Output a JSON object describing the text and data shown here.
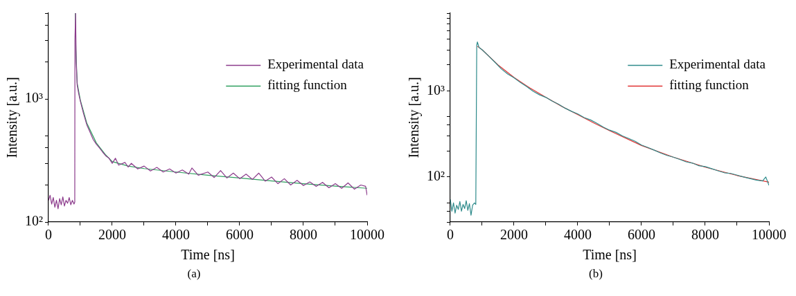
{
  "chart_data": [
    {
      "type": "line",
      "xlabel": "Time [ns]",
      "ylabel": "Intensity [a.u.]",
      "log": "y",
      "legend": "top right",
      "grid": false,
      "marker": "none",
      "annotations": [
        "(a)"
      ],
      "xlim": [
        0,
        10000
      ],
      "xticks": [
        0,
        {
          "value": 1000,
          "label": null
        },
        2000,
        {
          "value": 3000,
          "label": null
        },
        4000,
        {
          "value": 5000,
          "label": null
        },
        6000,
        {
          "value": 7000,
          "label": null
        },
        8000,
        {
          "value": 9000,
          "label": null
        },
        10000
      ],
      "ylim": [
        100,
        5000
      ],
      "yticks": [
        {
          "value": 100,
          "label": "10²"
        },
        {
          "value": 200,
          "label": null
        },
        {
          "value": 300,
          "label": null
        },
        {
          "value": 400,
          "label": null
        },
        {
          "value": 500,
          "label": null
        },
        {
          "value": 1000,
          "label": "10³"
        },
        {
          "value": 2000,
          "label": null
        },
        {
          "value": 3000,
          "label": null
        },
        {
          "value": 4000,
          "label": null
        },
        {
          "value": 5000,
          "label": null
        }
      ],
      "series": [
        {
          "name": "Experimental data",
          "color": "#8b3a8b",
          "x": [
            0,
            50,
            100,
            150,
            200,
            250,
            300,
            350,
            400,
            450,
            500,
            550,
            600,
            650,
            700,
            750,
            800,
            825,
            830,
            850,
            870,
            900,
            950,
            1000,
            1100,
            1200,
            1300,
            1400,
            1500,
            1600,
            1700,
            1800,
            1900,
            2000,
            2100,
            2200,
            2400,
            2500,
            2600,
            2800,
            3000,
            3200,
            3400,
            3600,
            3800,
            4000,
            4200,
            4400,
            4500,
            4700,
            5000,
            5200,
            5400,
            5600,
            5800,
            6000,
            6200,
            6400,
            6600,
            6800,
            7000,
            7200,
            7400,
            7600,
            7800,
            8000,
            8200,
            8400,
            8600,
            8800,
            9000,
            9200,
            9400,
            9600,
            9800,
            9950,
            10000
          ],
          "values": [
            150,
            165,
            140,
            158,
            132,
            150,
            128,
            155,
            138,
            160,
            135,
            150,
            142,
            158,
            138,
            150,
            140,
            145,
            3000,
            5000,
            2000,
            1300,
            1100,
            960,
            760,
            620,
            540,
            470,
            430,
            400,
            370,
            345,
            330,
            300,
            330,
            290,
            305,
            280,
            300,
            270,
            285,
            260,
            278,
            255,
            270,
            250,
            265,
            245,
            275,
            240,
            255,
            230,
            262,
            228,
            250,
            225,
            245,
            222,
            250,
            215,
            232,
            205,
            225,
            200,
            218,
            198,
            212,
            195,
            210,
            190,
            205,
            188,
            208,
            185,
            200,
            195,
            165
          ]
        },
        {
          "name": "fitting function",
          "color": "#2e9e5e",
          "x": [
            840,
            860,
            900,
            1000,
            1200,
            1500,
            1800,
            2000,
            2500,
            3000,
            4000,
            5000,
            6000,
            7000,
            8000,
            9000,
            10000
          ],
          "values": [
            5000,
            2500,
            1350,
            980,
            640,
            440,
            350,
            310,
            285,
            272,
            255,
            240,
            228,
            216,
            205,
            196,
            188
          ]
        }
      ]
    },
    {
      "type": "line",
      "xlabel": "Time [ns]",
      "ylabel": "Intensity [a.u.]",
      "log": "y",
      "legend": "top right",
      "grid": false,
      "marker": "none",
      "annotations": [
        "(b)"
      ],
      "xlim": [
        0,
        10000
      ],
      "xticks": [
        0,
        {
          "value": 1000,
          "label": null
        },
        2000,
        {
          "value": 3000,
          "label": null
        },
        4000,
        {
          "value": 5000,
          "label": null
        },
        6000,
        {
          "value": 7000,
          "label": null
        },
        8000,
        {
          "value": 9000,
          "label": null
        },
        10000
      ],
      "ylim": [
        30,
        8000
      ],
      "yticks": [
        {
          "value": 30,
          "label": null
        },
        {
          "value": 40,
          "label": null
        },
        {
          "value": 50,
          "label": null
        },
        {
          "value": 100,
          "label": "10²"
        },
        {
          "value": 200,
          "label": null
        },
        {
          "value": 300,
          "label": null
        },
        {
          "value": 400,
          "label": null
        },
        {
          "value": 500,
          "label": null
        },
        {
          "value": 1000,
          "label": "10³"
        },
        {
          "value": 2000,
          "label": null
        },
        {
          "value": 3000,
          "label": null
        },
        {
          "value": 4000,
          "label": null
        },
        {
          "value": 5000,
          "label": null
        },
        {
          "value": 6000,
          "label": null
        },
        {
          "value": 7000,
          "label": null
        },
        {
          "value": 8000,
          "label": null
        }
      ],
      "series": [
        {
          "name": "Experimental data",
          "color": "#2e8b8b",
          "x": [
            0,
            50,
            100,
            150,
            200,
            250,
            300,
            350,
            400,
            450,
            500,
            550,
            600,
            650,
            700,
            760,
            800,
            830,
            850,
            900,
            1000,
            1200,
            1400,
            1600,
            1800,
            2000,
            2200,
            2400,
            2600,
            2800,
            3000,
            3200,
            3400,
            3600,
            3800,
            4000,
            4200,
            4400,
            4600,
            4800,
            5000,
            5200,
            5400,
            5600,
            5800,
            6000,
            6200,
            6400,
            6600,
            6800,
            7000,
            7200,
            7400,
            7600,
            7800,
            8000,
            8200,
            8400,
            8600,
            8800,
            9000,
            9200,
            9400,
            9600,
            9800,
            9900,
            10000
          ],
          "values": [
            55,
            40,
            50,
            38,
            47,
            42,
            52,
            40,
            48,
            43,
            53,
            41,
            49,
            36,
            47,
            50,
            48,
            3400,
            3700,
            3200,
            3000,
            2550,
            2150,
            1800,
            1570,
            1420,
            1250,
            1120,
            990,
            900,
            840,
            760,
            700,
            630,
            580,
            540,
            490,
            460,
            420,
            380,
            350,
            330,
            300,
            280,
            260,
            235,
            220,
            205,
            190,
            178,
            170,
            160,
            150,
            145,
            135,
            132,
            125,
            118,
            112,
            110,
            105,
            100,
            96,
            92,
            90,
            100,
            80
          ]
        },
        {
          "name": "fitting function",
          "color": "#e03030",
          "x": [
            850,
            1000,
            1500,
            2000,
            2500,
            3000,
            3500,
            4000,
            4500,
            5000,
            6000,
            7000,
            8000,
            9000,
            10000
          ],
          "values": [
            3300,
            3000,
            2000,
            1430,
            1080,
            840,
            660,
            530,
            425,
            345,
            232,
            170,
            130,
            104,
            87
          ]
        }
      ]
    }
  ]
}
